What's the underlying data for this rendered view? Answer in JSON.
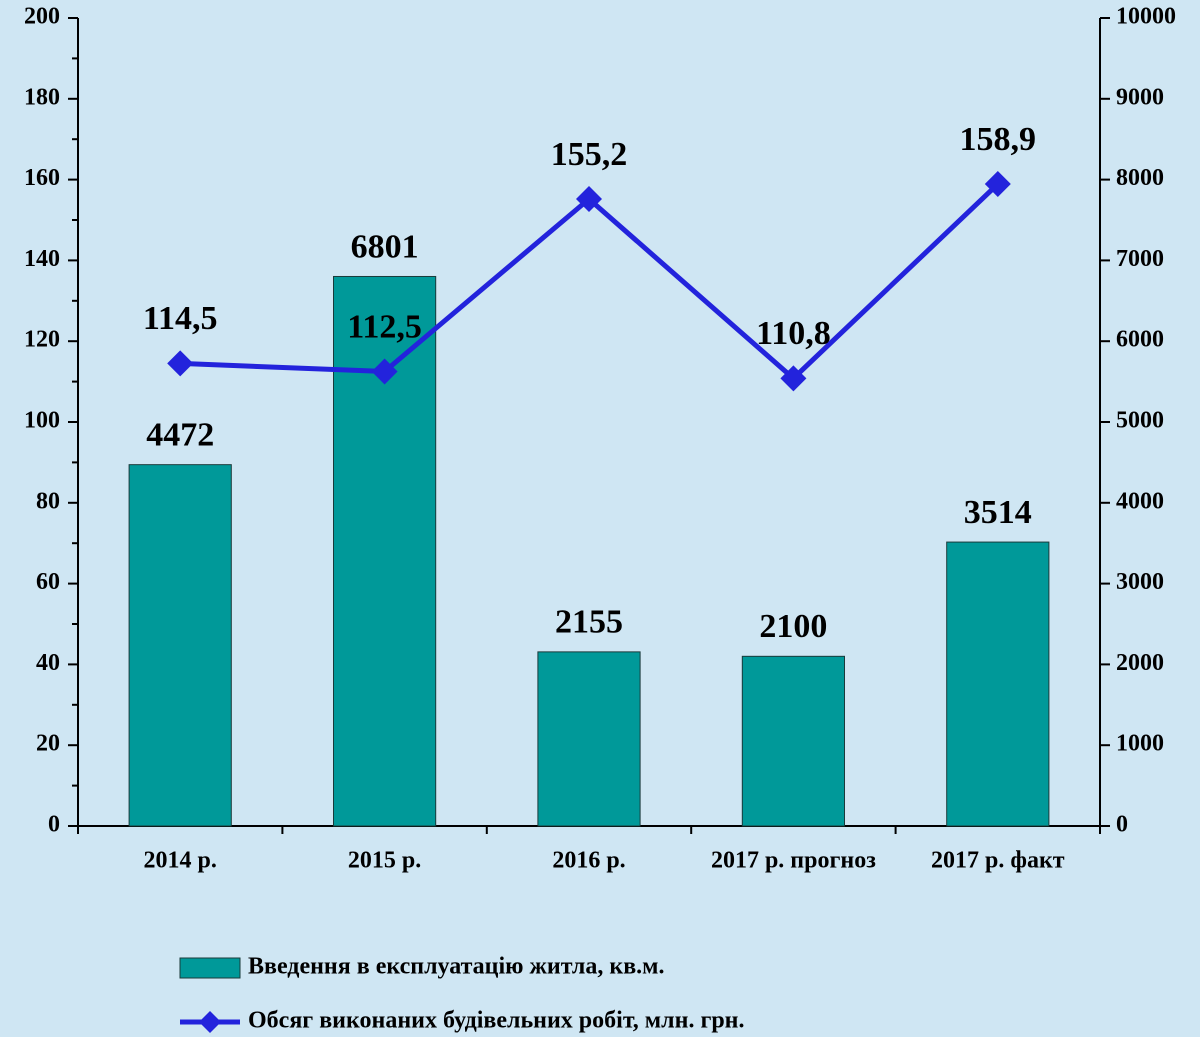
{
  "chart_data": {
    "type": "combo",
    "categories": [
      "2014 р.",
      "2015 р.",
      "2016 р.",
      "2017 р. прогноз",
      "2017 р. факт"
    ],
    "series": [
      {
        "name": "Введення в експлуатацію житла, кв.м.",
        "type": "bar",
        "axis": "y2",
        "color": "#009999",
        "values": [
          4472,
          6801,
          2155,
          2100,
          3514
        ]
      },
      {
        "name": "Обсяг виконаних будівельних робіт, млн. грн.",
        "type": "line",
        "axis": "y",
        "color": "#2323dc",
        "values": [
          114.5,
          112.5,
          155.2,
          110.8,
          158.9
        ],
        "value_labels": [
          "114,5",
          "112,5",
          "155,2",
          "110,8",
          "158,9"
        ]
      }
    ],
    "ylim": [
      0,
      200
    ],
    "yticks": [
      0,
      20,
      40,
      60,
      80,
      100,
      120,
      140,
      160,
      180,
      200
    ],
    "y2lim": [
      0,
      10000
    ],
    "y2ticks": [
      0,
      1000,
      2000,
      3000,
      4000,
      5000,
      6000,
      7000,
      8000,
      9000,
      10000
    ],
    "legend": "bottom"
  }
}
